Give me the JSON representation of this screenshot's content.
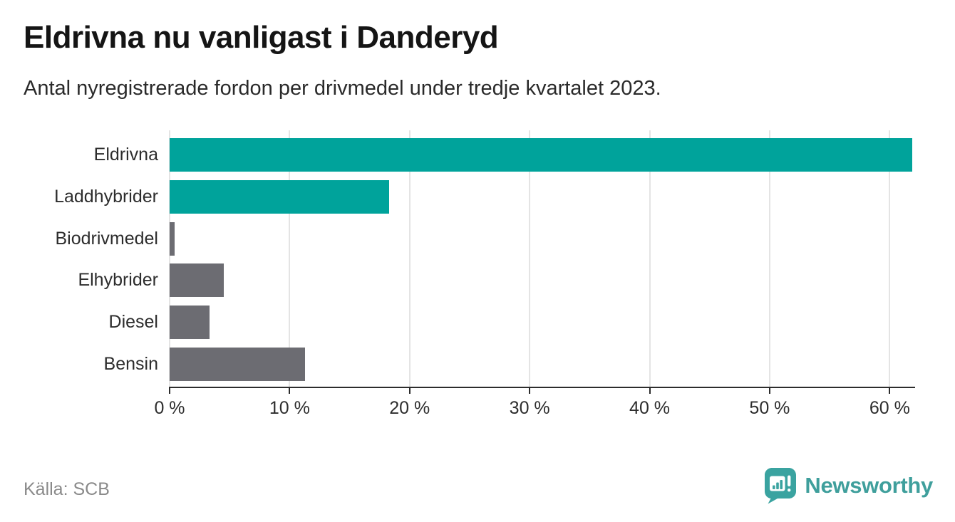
{
  "header": {
    "title": "Eldrivna nu vanligast i Danderyd",
    "subtitle": "Antal nyregistrerade fordon per drivmedel under tredje kvartalet 2023."
  },
  "chart_data": {
    "type": "bar",
    "orientation": "horizontal",
    "title": "Eldrivna nu vanligast i Danderyd",
    "subtitle": "Antal nyregistrerade fordon per drivmedel under tredje kvartalet 2023.",
    "categories": [
      "Eldrivna",
      "Laddhybrider",
      "Biodrivmedel",
      "Elhybrider",
      "Diesel",
      "Bensin"
    ],
    "values": [
      61.9,
      18.3,
      0.4,
      4.5,
      3.3,
      11.3
    ],
    "unit": "%",
    "bar_colors": [
      "#00a39b",
      "#00a39b",
      "#6c6c72",
      "#6c6c72",
      "#6c6c72",
      "#6c6c72"
    ],
    "xlim": [
      0,
      62
    ],
    "x_ticks": [
      0,
      10,
      20,
      30,
      40,
      50,
      60
    ],
    "x_tick_labels": [
      "0 %",
      "10 %",
      "20 %",
      "30 %",
      "40 %",
      "50 %",
      "60 %"
    ],
    "grid": true,
    "legend": false,
    "xlabel": "",
    "ylabel": ""
  },
  "footer": {
    "source": "Källa: SCB",
    "brand": "Newsworthy"
  },
  "colors": {
    "accent_teal": "#00a39b",
    "bar_gray": "#6c6c72",
    "brand_teal": "#3f9f9c",
    "grid": "#e4e4e4",
    "axis": "#2d2d2d",
    "title_text": "#151515",
    "source_text": "#8a8a8a"
  },
  "icons": {
    "brand_logo": "newsworthy-pin-chart-icon"
  }
}
